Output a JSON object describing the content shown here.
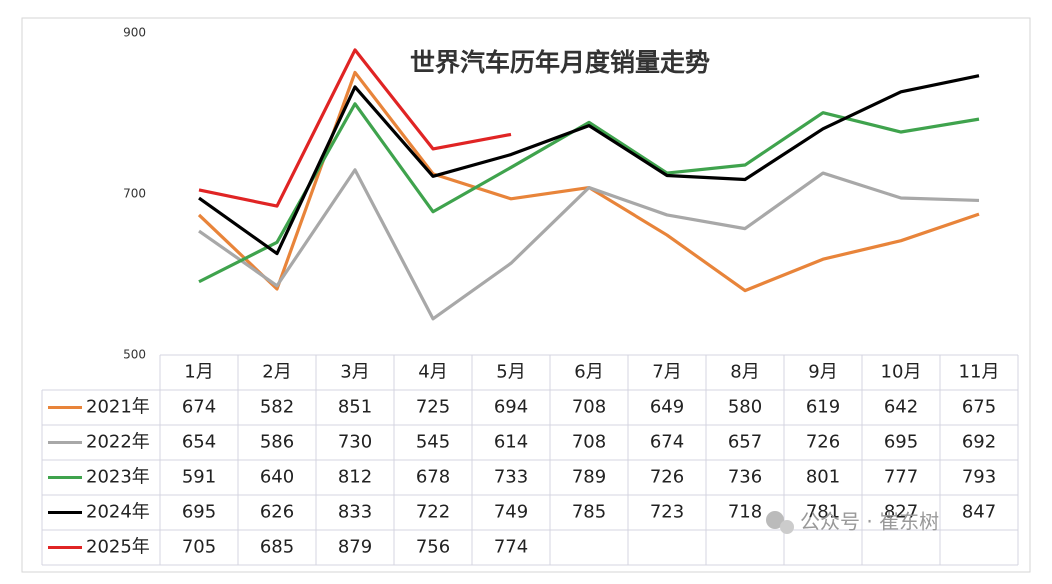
{
  "chart_data": {
    "type": "line",
    "title": "世界汽车历年月度销量走势",
    "categories": [
      "1月",
      "2月",
      "3月",
      "4月",
      "5月",
      "6月",
      "7月",
      "8月",
      "9月",
      "10月",
      "11月"
    ],
    "series": [
      {
        "name": "2021年",
        "color": "#e8843a",
        "values": [
          674,
          582,
          851,
          725,
          694,
          708,
          649,
          580,
          619,
          642,
          675
        ]
      },
      {
        "name": "2022年",
        "color": "#a8a8a8",
        "values": [
          654,
          586,
          730,
          545,
          614,
          708,
          674,
          657,
          726,
          695,
          692
        ]
      },
      {
        "name": "2023年",
        "color": "#3fa34d",
        "values": [
          591,
          640,
          812,
          678,
          733,
          789,
          726,
          736,
          801,
          777,
          793
        ]
      },
      {
        "name": "2024年",
        "color": "#000000",
        "values": [
          695,
          626,
          833,
          722,
          749,
          785,
          723,
          718,
          781,
          827,
          847
        ]
      },
      {
        "name": "2025年",
        "color": "#e02424",
        "values": [
          705,
          685,
          879,
          756,
          774,
          null,
          null,
          null,
          null,
          null,
          null
        ]
      }
    ],
    "ylim": [
      500,
      900
    ],
    "yticks": [
      500,
      700,
      900
    ],
    "grid": false,
    "watermark": "公众号 · 崔东树"
  }
}
